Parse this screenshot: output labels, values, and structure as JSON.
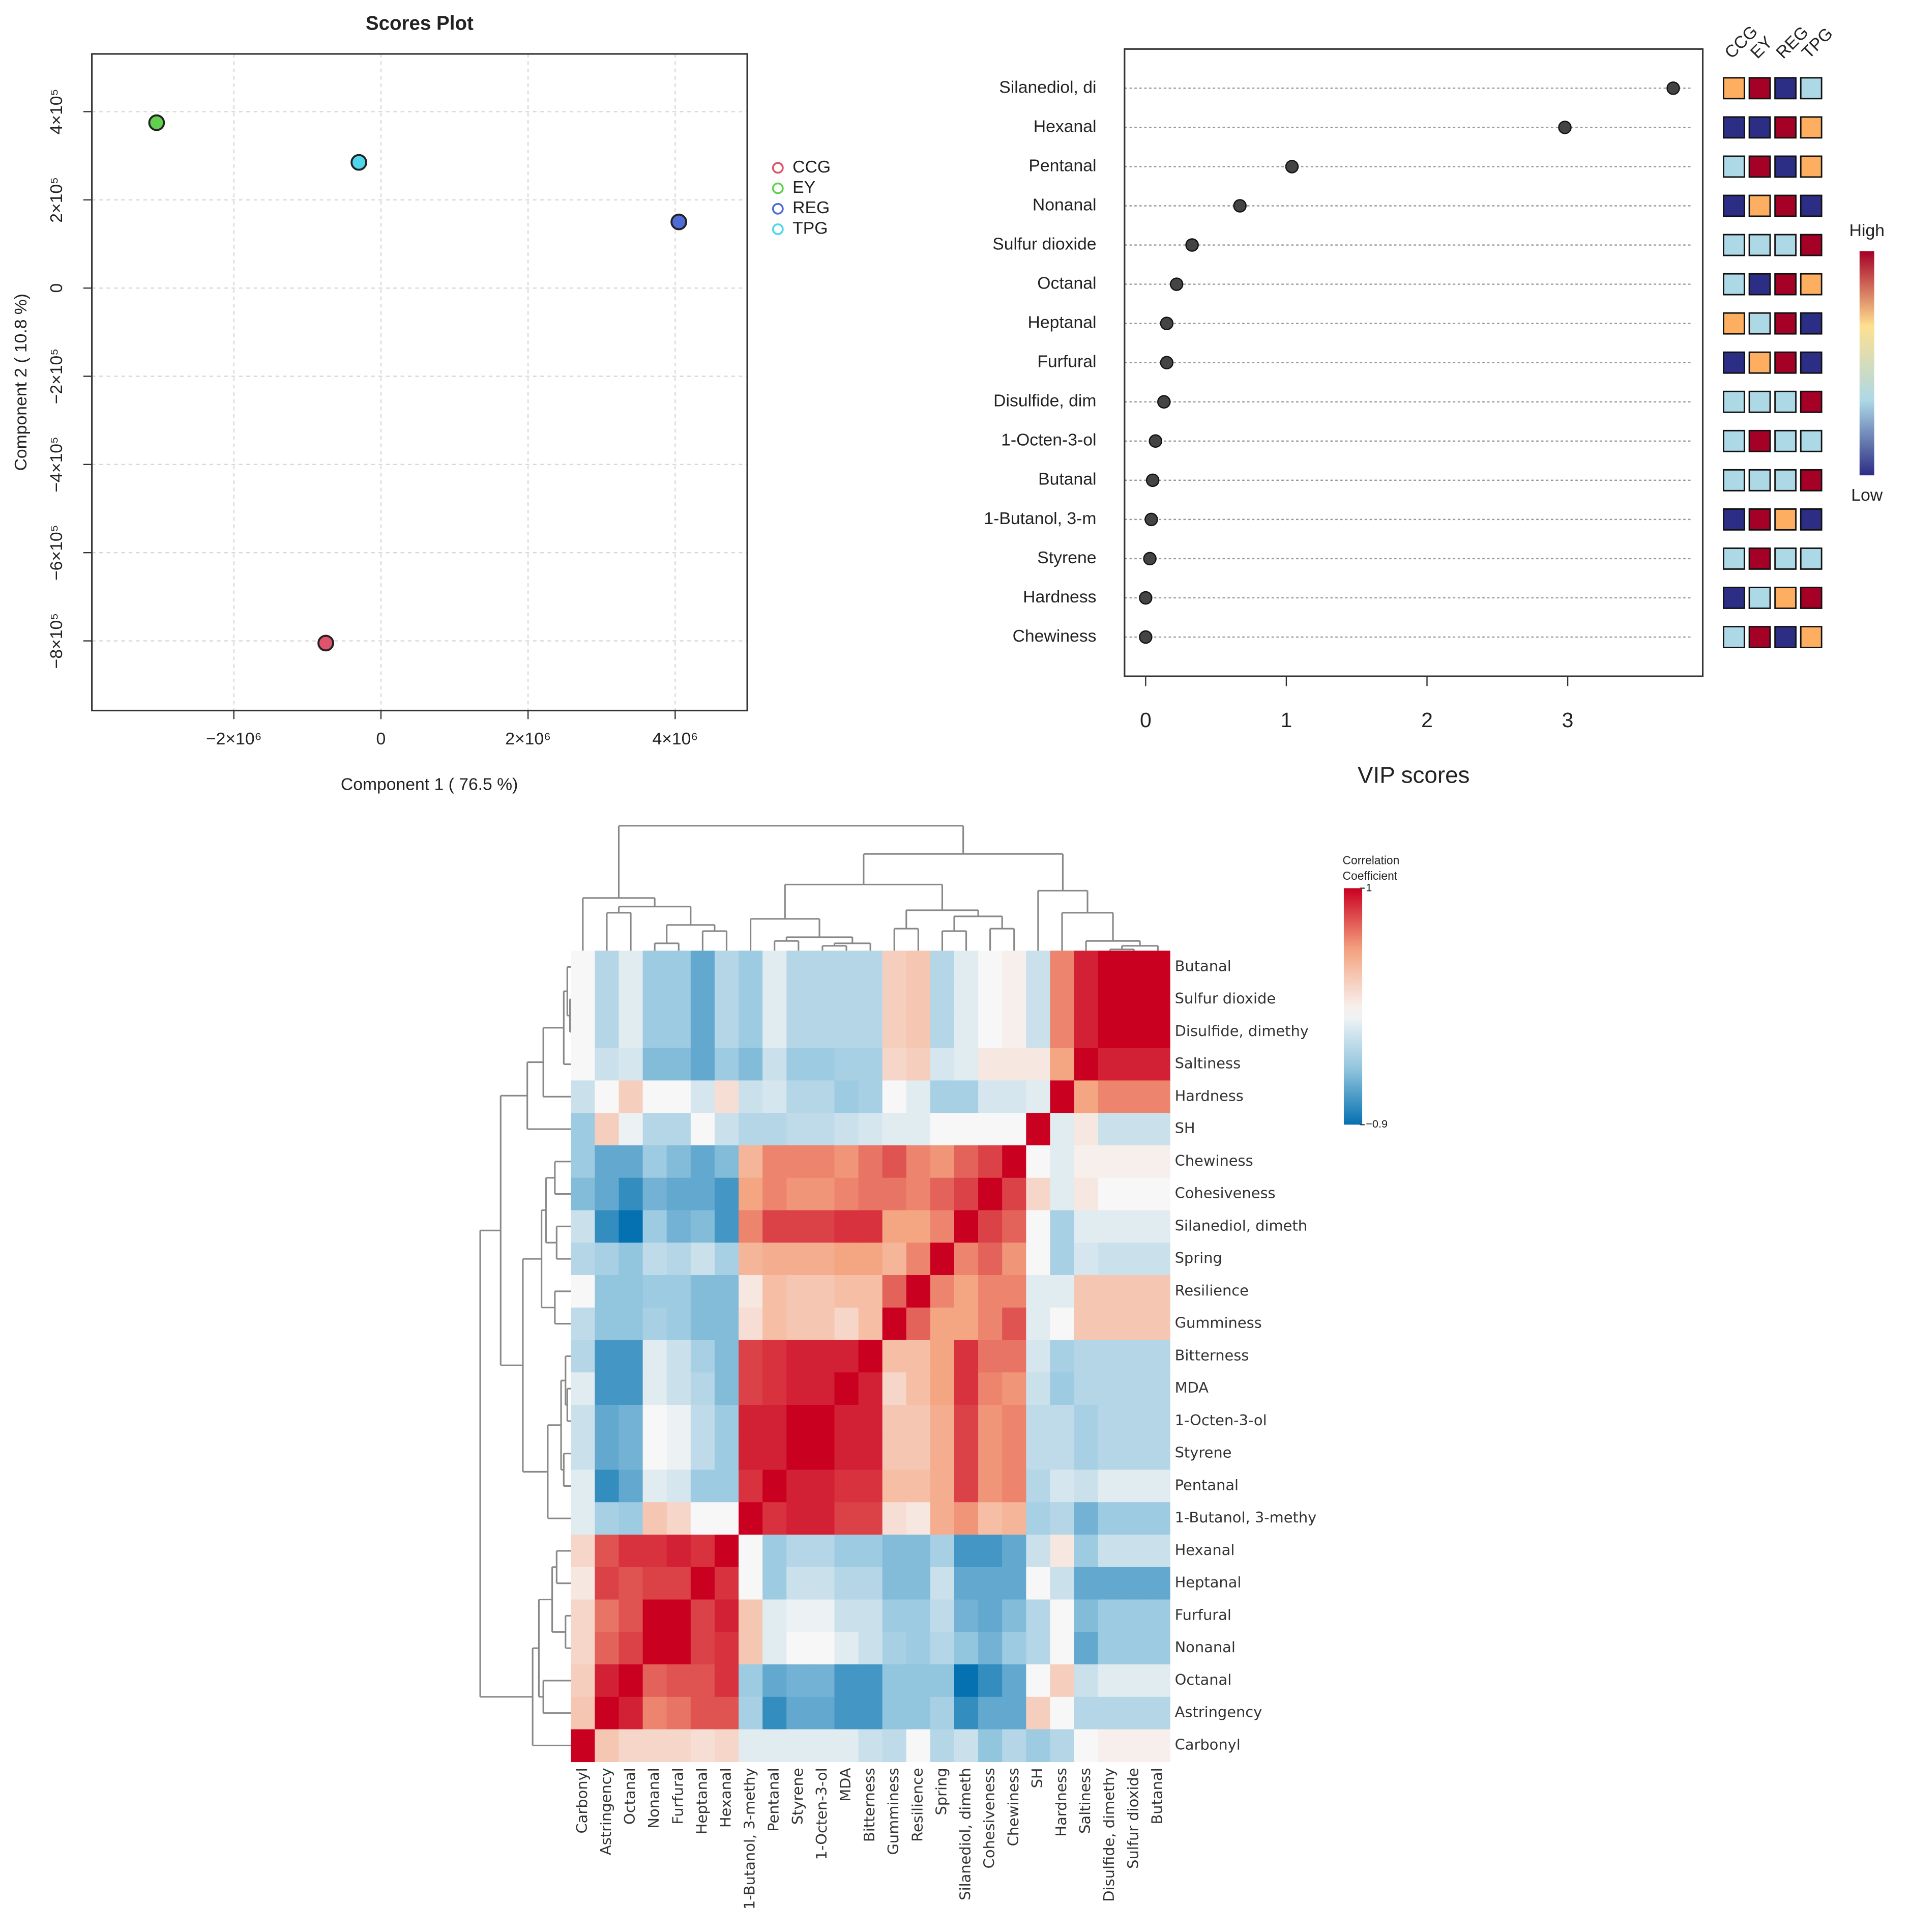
{
  "chart_data": [
    {
      "type": "scatter",
      "title": "Scores Plot",
      "xlabel": "Component 1 ( 76.5 %)",
      "ylabel": "Component 2 ( 10.8 %)",
      "xlim": [
        -3930000,
        4980000
      ],
      "ylim": [
        -958000,
        531000
      ],
      "xticks": [
        {
          "value": -2000000,
          "label": "−2×10⁶"
        },
        0,
        {
          "value": 2000000,
          "label": "2×10⁶"
        },
        {
          "value": 4000000,
          "label": "4×10⁶"
        }
      ],
      "yticks": [
        {
          "value": -800000,
          "label": "−8×10⁵"
        },
        {
          "value": -600000,
          "label": "−6×10⁵"
        },
        {
          "value": -400000,
          "label": "−4×10⁵"
        },
        {
          "value": -200000,
          "label": "−2×10⁵"
        },
        0,
        {
          "value": 200000,
          "label": "2×10⁵"
        },
        {
          "value": 400000,
          "label": "4×10⁵"
        }
      ],
      "grid": true,
      "legend": "right",
      "series": [
        {
          "name": "CCG",
          "color": "#df536b",
          "x": [
            -750000
          ],
          "values": [
            -805000
          ]
        },
        {
          "name": "EY",
          "color": "#61d04f",
          "x": [
            -3050000
          ],
          "values": [
            375000
          ]
        },
        {
          "name": "REG",
          "color": "#4f6bd8",
          "x": [
            4050000
          ],
          "values": [
            150000
          ]
        },
        {
          "name": "TPG",
          "color": "#4fd5ec",
          "x": [
            -300000
          ],
          "values": [
            285000
          ]
        }
      ]
    },
    {
      "type": "dot",
      "xlabel": "VIP scores",
      "color": "#444444",
      "categories": [
        "Silanediol, di",
        "Hexanal",
        "Pentanal",
        "Nonanal",
        "Sulfur dioxide",
        "Octanal",
        "Heptanal",
        "Furfural",
        "Disulfide, dim",
        "1-Octen-3-ol",
        "Butanal",
        "1-Butanol, 3-m",
        "Styrene",
        "Hardness",
        "Chewiness"
      ],
      "values": [
        3.75,
        2.98,
        1.04,
        0.67,
        0.33,
        0.22,
        0.15,
        0.15,
        0.13,
        0.07,
        0.05,
        0.04,
        0.03,
        0.0,
        0.0
      ],
      "xlim": [
        -0.15,
        3.96
      ],
      "xticks": [
        0,
        1,
        2,
        3
      ],
      "groups": [
        "CCG",
        "EY",
        "REG",
        "TPG"
      ],
      "group_colors": [
        [
          "#fdae61",
          "#a50026",
          "#2c2d84",
          "#add8e6"
        ],
        [
          "#2c2d84",
          "#2c2d84",
          "#a50026",
          "#fdae61"
        ],
        [
          "#add8e6",
          "#a50026",
          "#2c2d84",
          "#fdae61"
        ],
        [
          "#2c2d84",
          "#fdae61",
          "#a50026",
          "#2c2d84"
        ],
        [
          "#add8e6",
          "#add8e6",
          "#add8e6",
          "#a50026"
        ],
        [
          "#add8e6",
          "#2c2d84",
          "#a50026",
          "#fdae61"
        ],
        [
          "#fdae61",
          "#add8e6",
          "#a50026",
          "#2c2d84"
        ],
        [
          "#2c2d84",
          "#fdae61",
          "#a50026",
          "#2c2d84"
        ],
        [
          "#add8e6",
          "#add8e6",
          "#add8e6",
          "#a50026"
        ],
        [
          "#add8e6",
          "#a50026",
          "#add8e6",
          "#add8e6"
        ],
        [
          "#add8e6",
          "#add8e6",
          "#add8e6",
          "#a50026"
        ],
        [
          "#2c2d84",
          "#a50026",
          "#fdae61",
          "#2c2d84"
        ],
        [
          "#add8e6",
          "#a50026",
          "#add8e6",
          "#add8e6"
        ],
        [
          "#2c2d84",
          "#add8e6",
          "#fdae61",
          "#a50026"
        ],
        [
          "#add8e6",
          "#a50026",
          "#2c2d84",
          "#fdae61"
        ]
      ],
      "colorbar_labels": [
        "High",
        "Low"
      ],
      "colorbar_colors": [
        "#2c2d84",
        "#add8e6",
        "#fee090",
        "#a50026"
      ]
    },
    {
      "type": "heatmap",
      "colorbar_title": [
        "Correlation",
        "Coefficient"
      ],
      "clim": [
        -0.9,
        1
      ],
      "cticks": [
        1,
        {
          "value": -0.9,
          "label": "−0.9"
        }
      ],
      "colors_negative": [
        "#f7f7f7",
        "#92c5de",
        "#0571b0"
      ],
      "colors_positive": [
        "#f7f7f7",
        "#f4a582",
        "#ca0020"
      ],
      "x": [
        "Carbonyl",
        "Astringency",
        "Octanal",
        "Nonanal",
        "Furfural",
        "Heptanal",
        "Hexanal",
        "1-Butanol, 3-methy",
        "Pentanal",
        "Styrene",
        "1-Octen-3-ol",
        "MDA",
        "Bitterness",
        "Gumminess",
        "Resilience",
        "Spring",
        "Silanediol, dimeth",
        "Cohesiveness",
        "Chewiness",
        "SH",
        "Hardness",
        "Saltiness",
        "Disulfide, dimethy",
        "Sulfur dioxide",
        "Butanal"
      ],
      "y": [
        "Butanal",
        "Sulfur dioxide",
        "Disulfide, dimethy",
        "Saltiness",
        "Hardness",
        "SH",
        "Chewiness",
        "Cohesiveness",
        "Silanediol, dimeth",
        "Spring",
        "Resilience",
        "Gumminess",
        "Bitterness",
        "MDA",
        "1-Octen-3-ol",
        "Styrene",
        "Pentanal",
        "1-Butanol, 3-methy",
        "Hexanal",
        "Heptanal",
        "Furfural",
        "Nonanal",
        "Octanal",
        "Astringency",
        "Carbonyl"
      ],
      "values": [
        [
          0.0,
          -0.3,
          -0.1,
          -0.4,
          -0.4,
          -0.6,
          -0.3,
          -0.4,
          -0.1,
          -0.3,
          -0.3,
          -0.3,
          -0.3,
          0.25,
          0.3,
          -0.3,
          -0.1,
          0.0,
          0.05,
          -0.2,
          0.6,
          0.9,
          1,
          1,
          1
        ],
        [
          0.0,
          -0.3,
          -0.1,
          -0.4,
          -0.4,
          -0.6,
          -0.3,
          -0.4,
          -0.1,
          -0.3,
          -0.3,
          -0.3,
          -0.3,
          0.25,
          0.3,
          -0.3,
          -0.1,
          0.0,
          0.05,
          -0.2,
          0.6,
          0.9,
          1,
          1,
          1
        ],
        [
          0.0,
          -0.3,
          -0.1,
          -0.4,
          -0.4,
          -0.6,
          -0.3,
          -0.4,
          -0.1,
          -0.3,
          -0.3,
          -0.3,
          -0.3,
          0.25,
          0.3,
          -0.3,
          -0.1,
          0.0,
          0.05,
          -0.2,
          0.6,
          0.9,
          1,
          1,
          1
        ],
        [
          0.0,
          -0.2,
          -0.15,
          -0.5,
          -0.5,
          -0.6,
          -0.4,
          -0.5,
          -0.2,
          -0.4,
          -0.4,
          -0.35,
          -0.35,
          0.2,
          0.25,
          -0.15,
          -0.1,
          0.1,
          0.1,
          0.1,
          0.5,
          1,
          0.9,
          0.9,
          0.9
        ],
        [
          -0.2,
          0.0,
          0.25,
          0.0,
          0.0,
          -0.15,
          0.15,
          -0.2,
          -0.15,
          -0.3,
          -0.3,
          -0.4,
          -0.35,
          0.0,
          -0.1,
          -0.35,
          -0.35,
          -0.15,
          -0.15,
          -0.1,
          1,
          0.5,
          0.6,
          0.6,
          0.6
        ],
        [
          -0.4,
          0.25,
          -0.05,
          -0.3,
          -0.3,
          0.0,
          -0.2,
          -0.3,
          -0.3,
          -0.25,
          -0.25,
          -0.2,
          -0.15,
          -0.1,
          -0.1,
          0.0,
          0.0,
          0.0,
          0.0,
          1,
          -0.1,
          0.1,
          -0.2,
          -0.2,
          -0.2
        ],
        [
          -0.4,
          -0.6,
          -0.6,
          -0.4,
          -0.5,
          -0.6,
          -0.5,
          0.4,
          0.6,
          0.6,
          0.6,
          0.55,
          0.65,
          0.75,
          0.6,
          0.55,
          0.7,
          0.8,
          1,
          0.0,
          -0.1,
          0.05,
          0.05,
          0.05,
          0.05
        ],
        [
          -0.5,
          -0.6,
          -0.75,
          -0.55,
          -0.6,
          -0.6,
          -0.7,
          0.5,
          0.6,
          0.55,
          0.55,
          0.6,
          0.65,
          0.65,
          0.6,
          0.7,
          0.8,
          1,
          0.8,
          0.2,
          -0.1,
          0.1,
          0.0,
          0.0,
          0.0
        ],
        [
          -0.2,
          -0.75,
          -0.9,
          -0.4,
          -0.55,
          -0.5,
          -0.7,
          0.6,
          0.8,
          0.8,
          0.8,
          0.85,
          0.85,
          0.5,
          0.5,
          0.6,
          1,
          0.8,
          0.7,
          0.0,
          -0.35,
          -0.1,
          -0.1,
          -0.1,
          -0.1
        ],
        [
          -0.3,
          -0.35,
          -0.45,
          -0.25,
          -0.3,
          -0.2,
          -0.35,
          0.4,
          0.45,
          0.45,
          0.45,
          0.5,
          0.5,
          0.4,
          0.6,
          1,
          0.6,
          0.7,
          0.55,
          0.0,
          -0.35,
          -0.15,
          -0.2,
          -0.2,
          -0.2
        ],
        [
          0.0,
          -0.45,
          -0.45,
          -0.4,
          -0.4,
          -0.5,
          -0.5,
          0.1,
          0.35,
          0.3,
          0.3,
          0.35,
          0.35,
          0.7,
          1,
          0.6,
          0.5,
          0.6,
          0.6,
          -0.1,
          -0.1,
          0.3,
          0.3,
          0.3,
          0.3
        ],
        [
          -0.25,
          -0.45,
          -0.45,
          -0.35,
          -0.4,
          -0.5,
          -0.5,
          0.15,
          0.35,
          0.3,
          0.3,
          0.2,
          0.35,
          1,
          0.7,
          0.5,
          0.5,
          0.6,
          0.75,
          -0.1,
          0.0,
          0.3,
          0.3,
          0.3,
          0.3
        ],
        [
          -0.3,
          -0.7,
          -0.7,
          -0.1,
          -0.2,
          -0.35,
          -0.5,
          0.8,
          0.85,
          0.9,
          0.9,
          0.9,
          1,
          0.35,
          0.35,
          0.5,
          0.85,
          0.65,
          0.65,
          -0.15,
          -0.35,
          -0.3,
          -0.3,
          -0.3,
          -0.3
        ],
        [
          -0.1,
          -0.7,
          -0.7,
          -0.1,
          -0.2,
          -0.3,
          -0.5,
          0.8,
          0.85,
          0.9,
          0.9,
          1,
          0.9,
          0.2,
          0.35,
          0.5,
          0.85,
          0.6,
          0.55,
          -0.2,
          -0.4,
          -0.3,
          -0.3,
          -0.3,
          -0.3
        ],
        [
          -0.2,
          -0.6,
          -0.55,
          0.0,
          -0.05,
          -0.25,
          -0.4,
          0.9,
          0.9,
          1,
          1,
          0.9,
          0.9,
          0.3,
          0.3,
          0.45,
          0.8,
          0.55,
          0.6,
          -0.25,
          -0.25,
          -0.35,
          -0.3,
          -0.3,
          -0.3
        ],
        [
          -0.2,
          -0.6,
          -0.55,
          0.0,
          -0.05,
          -0.25,
          -0.4,
          0.9,
          0.9,
          1,
          1,
          0.9,
          0.9,
          0.3,
          0.3,
          0.45,
          0.8,
          0.55,
          0.6,
          -0.25,
          -0.25,
          -0.35,
          -0.3,
          -0.3,
          -0.3
        ],
        [
          -0.1,
          -0.75,
          -0.6,
          -0.1,
          -0.15,
          -0.4,
          -0.4,
          0.85,
          1,
          0.9,
          0.9,
          0.85,
          0.85,
          0.35,
          0.35,
          0.45,
          0.8,
          0.55,
          0.6,
          -0.3,
          -0.15,
          -0.2,
          -0.1,
          -0.1,
          -0.1
        ],
        [
          -0.1,
          -0.35,
          -0.4,
          0.3,
          0.2,
          0.0,
          0.0,
          1,
          0.85,
          0.9,
          0.9,
          0.8,
          0.8,
          0.15,
          0.1,
          0.45,
          0.55,
          0.35,
          0.4,
          -0.35,
          -0.3,
          -0.55,
          -0.4,
          -0.4,
          -0.4
        ],
        [
          0.2,
          0.75,
          0.85,
          0.85,
          0.9,
          0.85,
          1,
          0.0,
          -0.4,
          -0.3,
          -0.3,
          -0.4,
          -0.4,
          -0.5,
          -0.5,
          -0.35,
          -0.7,
          -0.7,
          -0.6,
          -0.2,
          0.1,
          -0.4,
          -0.2,
          -0.2,
          -0.2
        ],
        [
          0.1,
          0.8,
          0.75,
          0.8,
          0.8,
          1,
          0.85,
          0.0,
          -0.4,
          -0.2,
          -0.2,
          -0.3,
          -0.3,
          -0.5,
          -0.5,
          -0.2,
          -0.6,
          -0.6,
          -0.6,
          0.0,
          -0.2,
          -0.6,
          -0.6,
          -0.6,
          -0.6
        ],
        [
          0.2,
          0.65,
          0.75,
          1,
          1,
          0.8,
          0.9,
          0.3,
          -0.1,
          -0.05,
          -0.05,
          -0.2,
          -0.2,
          -0.4,
          -0.4,
          -0.25,
          -0.55,
          -0.6,
          -0.5,
          -0.3,
          0.0,
          -0.5,
          -0.4,
          -0.4,
          -0.4
        ],
        [
          0.2,
          0.7,
          0.8,
          1,
          1,
          0.8,
          0.85,
          0.3,
          -0.1,
          0.0,
          0.0,
          -0.1,
          -0.2,
          -0.35,
          -0.4,
          -0.3,
          -0.45,
          -0.55,
          -0.4,
          -0.3,
          0.0,
          -0.6,
          -0.4,
          -0.4,
          -0.4
        ],
        [
          0.25,
          0.9,
          1,
          0.7,
          0.75,
          0.75,
          0.85,
          -0.4,
          -0.6,
          -0.55,
          -0.55,
          -0.7,
          -0.7,
          -0.45,
          -0.45,
          -0.45,
          -0.9,
          -0.75,
          -0.6,
          0.0,
          0.25,
          -0.2,
          -0.1,
          -0.1,
          -0.1
        ],
        [
          0.3,
          1,
          0.9,
          0.6,
          0.65,
          0.75,
          0.75,
          -0.35,
          -0.75,
          -0.6,
          -0.6,
          -0.7,
          -0.7,
          -0.45,
          -0.45,
          -0.35,
          -0.75,
          -0.6,
          -0.6,
          0.25,
          0.0,
          -0.3,
          -0.3,
          -0.3,
          -0.3
        ],
        [
          1,
          0.3,
          0.2,
          0.2,
          0.2,
          0.15,
          0.2,
          -0.1,
          -0.1,
          -0.1,
          -0.1,
          -0.1,
          -0.2,
          -0.25,
          0.0,
          -0.3,
          -0.2,
          -0.45,
          -0.3,
          -0.4,
          -0.3,
          0.0,
          0.05,
          0.05,
          0.05
        ]
      ]
    }
  ]
}
